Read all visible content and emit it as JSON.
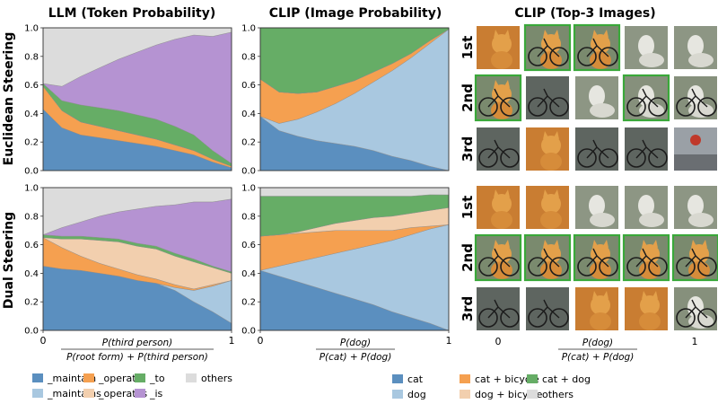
{
  "headers": {
    "llm": "LLM (Token Probability)",
    "clip_prob": "CLIP (Image Probability)",
    "clip_images": "CLIP (Top-3 Images)"
  },
  "row_labels": {
    "euclidean": "Euclidean Steering",
    "dual": "Dual Steering"
  },
  "rank_labels": [
    "1st",
    "2nd",
    "3rd"
  ],
  "xlabels": {
    "llm_num": "P(third person)",
    "llm_den": "P(root form) + P(third person)",
    "clip_num": "P(dog)",
    "clip_den": "P(cat) + P(dog)"
  },
  "chart_data": [
    {
      "id": "llm-euclidean",
      "type": "area",
      "stacked": true,
      "x": [
        0,
        0.1,
        0.2,
        0.3,
        0.4,
        0.5,
        0.6,
        0.7,
        0.8,
        0.9,
        1.0
      ],
      "xlim": [
        0,
        1
      ],
      "ylim": [
        0,
        1
      ],
      "yticks": [
        0.0,
        0.2,
        0.4,
        0.6,
        0.8,
        1.0
      ],
      "series": [
        {
          "name": "_maintain",
          "color": "#5b8fbf",
          "values": [
            0.43,
            0.3,
            0.25,
            0.23,
            0.21,
            0.19,
            0.17,
            0.14,
            0.11,
            0.06,
            0.02
          ]
        },
        {
          "name": "_maintains",
          "color": "#a9c8e0",
          "values": [
            0.0,
            0.0,
            0.0,
            0.0,
            0.0,
            0.0,
            0.0,
            0.0,
            0.0,
            0.0,
            0.0
          ]
        },
        {
          "name": "_operate",
          "color": "#f5a050",
          "values": [
            0.16,
            0.12,
            0.09,
            0.08,
            0.07,
            0.06,
            0.05,
            0.04,
            0.03,
            0.02,
            0.01
          ]
        },
        {
          "name": "_operates",
          "color": "#f2cfae",
          "values": [
            0.0,
            0.0,
            0.0,
            0.0,
            0.0,
            0.0,
            0.0,
            0.0,
            0.0,
            0.0,
            0.0
          ]
        },
        {
          "name": "_to",
          "color": "#66ad66",
          "values": [
            0.02,
            0.07,
            0.12,
            0.13,
            0.14,
            0.14,
            0.14,
            0.13,
            0.11,
            0.06,
            0.02
          ]
        },
        {
          "name": "_is",
          "color": "#b593d2",
          "values": [
            0.0,
            0.1,
            0.2,
            0.28,
            0.36,
            0.44,
            0.52,
            0.61,
            0.7,
            0.8,
            0.92
          ]
        },
        {
          "name": "others",
          "color": "#dcdcdc",
          "values": [
            0.39,
            0.41,
            0.34,
            0.28,
            0.22,
            0.17,
            0.12,
            0.08,
            0.05,
            0.06,
            0.03
          ]
        }
      ]
    },
    {
      "id": "clip-euclidean",
      "type": "area",
      "stacked": true,
      "x": [
        0,
        0.1,
        0.2,
        0.3,
        0.4,
        0.5,
        0.6,
        0.7,
        0.8,
        0.9,
        1.0
      ],
      "xlim": [
        0,
        1
      ],
      "ylim": [
        0,
        1
      ],
      "yticks": [
        0.0,
        0.2,
        0.4,
        0.6,
        0.8,
        1.0
      ],
      "series": [
        {
          "name": "cat",
          "color": "#5b8fbf",
          "values": [
            0.38,
            0.28,
            0.24,
            0.21,
            0.19,
            0.17,
            0.14,
            0.1,
            0.07,
            0.03,
            0.0
          ]
        },
        {
          "name": "dog",
          "color": "#a9c8e0",
          "values": [
            0.0,
            0.05,
            0.12,
            0.2,
            0.28,
            0.37,
            0.48,
            0.6,
            0.72,
            0.86,
            0.99
          ]
        },
        {
          "name": "cat + bicycle",
          "color": "#f5a050",
          "values": [
            0.26,
            0.22,
            0.18,
            0.14,
            0.12,
            0.09,
            0.07,
            0.05,
            0.03,
            0.02,
            0.0
          ]
        },
        {
          "name": "dog + bicycle",
          "color": "#f2cfae",
          "values": [
            0.0,
            0.0,
            0.0,
            0.0,
            0.0,
            0.0,
            0.0,
            0.0,
            0.0,
            0.0,
            0.0
          ]
        },
        {
          "name": "cat + dog",
          "color": "#66ad66",
          "values": [
            0.36,
            0.45,
            0.46,
            0.45,
            0.41,
            0.37,
            0.31,
            0.25,
            0.18,
            0.09,
            0.01
          ]
        },
        {
          "name": "others",
          "color": "#dcdcdc",
          "values": [
            0.0,
            0.0,
            0.0,
            0.0,
            0.0,
            0.0,
            0.0,
            0.0,
            0.0,
            0.0,
            0.0
          ]
        }
      ]
    },
    {
      "id": "llm-dual",
      "type": "area",
      "stacked": true,
      "x": [
        0,
        0.1,
        0.2,
        0.3,
        0.4,
        0.5,
        0.6,
        0.7,
        0.8,
        0.9,
        1.0
      ],
      "xlim": [
        0,
        1
      ],
      "ylim": [
        0,
        1
      ],
      "yticks": [
        0.0,
        0.2,
        0.4,
        0.6,
        0.8,
        1.0
      ],
      "series": [
        {
          "name": "_maintain",
          "color": "#5b8fbf",
          "values": [
            0.45,
            0.43,
            0.42,
            0.4,
            0.38,
            0.35,
            0.33,
            0.28,
            0.2,
            0.13,
            0.05
          ]
        },
        {
          "name": "_maintains",
          "color": "#a9c8e0",
          "values": [
            0.0,
            0.0,
            0.0,
            0.0,
            0.0,
            0.0,
            0.0,
            0.02,
            0.08,
            0.18,
            0.3
          ]
        },
        {
          "name": "_operate",
          "color": "#f5a050",
          "values": [
            0.2,
            0.15,
            0.1,
            0.07,
            0.05,
            0.04,
            0.03,
            0.02,
            0.01,
            0.01,
            0.0
          ]
        },
        {
          "name": "_operates",
          "color": "#f2cfae",
          "values": [
            0.0,
            0.06,
            0.12,
            0.16,
            0.19,
            0.2,
            0.21,
            0.2,
            0.19,
            0.12,
            0.05
          ]
        },
        {
          "name": "_to",
          "color": "#66ad66",
          "values": [
            0.02,
            0.02,
            0.02,
            0.02,
            0.02,
            0.02,
            0.02,
            0.02,
            0.02,
            0.01,
            0.01
          ]
        },
        {
          "name": "_is",
          "color": "#b593d2",
          "values": [
            0.0,
            0.06,
            0.1,
            0.15,
            0.19,
            0.24,
            0.28,
            0.34,
            0.4,
            0.45,
            0.51
          ]
        },
        {
          "name": "others",
          "color": "#dcdcdc",
          "values": [
            0.33,
            0.28,
            0.24,
            0.2,
            0.17,
            0.15,
            0.13,
            0.12,
            0.1,
            0.1,
            0.08
          ]
        }
      ]
    },
    {
      "id": "clip-dual",
      "type": "area",
      "stacked": true,
      "x": [
        0,
        0.1,
        0.2,
        0.3,
        0.4,
        0.5,
        0.6,
        0.7,
        0.8,
        0.9,
        1.0
      ],
      "xlim": [
        0,
        1
      ],
      "ylim": [
        0,
        1
      ],
      "yticks": [
        0.0,
        0.2,
        0.4,
        0.6,
        0.8,
        1.0
      ],
      "series": [
        {
          "name": "cat",
          "color": "#5b8fbf",
          "values": [
            0.42,
            0.38,
            0.34,
            0.3,
            0.26,
            0.22,
            0.18,
            0.13,
            0.09,
            0.05,
            0.0
          ]
        },
        {
          "name": "dog",
          "color": "#a9c8e0",
          "values": [
            0.0,
            0.07,
            0.14,
            0.21,
            0.28,
            0.35,
            0.42,
            0.5,
            0.58,
            0.66,
            0.74
          ]
        },
        {
          "name": "cat + bicycle",
          "color": "#f5a050",
          "values": [
            0.24,
            0.22,
            0.2,
            0.18,
            0.16,
            0.13,
            0.1,
            0.07,
            0.05,
            0.02,
            0.0
          ]
        },
        {
          "name": "dog + bicycle",
          "color": "#f2cfae",
          "values": [
            0.0,
            0.0,
            0.01,
            0.03,
            0.05,
            0.07,
            0.09,
            0.1,
            0.1,
            0.11,
            0.12
          ]
        },
        {
          "name": "cat + dog",
          "color": "#66ad66",
          "values": [
            0.28,
            0.27,
            0.25,
            0.22,
            0.19,
            0.17,
            0.15,
            0.14,
            0.12,
            0.11,
            0.09
          ]
        },
        {
          "name": "others",
          "color": "#dcdcdc",
          "values": [
            0.06,
            0.06,
            0.06,
            0.06,
            0.06,
            0.06,
            0.06,
            0.06,
            0.06,
            0.05,
            0.05
          ]
        }
      ]
    }
  ],
  "image_grid": {
    "x_ticks": [
      "0",
      "1"
    ],
    "rows": [
      {
        "steering": "Euclidean Steering",
        "rank": "1st",
        "images": [
          "cat",
          "cat+bicycle",
          "cat+bicycle",
          "dog",
          "dog"
        ],
        "highlight": [
          false,
          true,
          true,
          false,
          false
        ]
      },
      {
        "steering": "Euclidean Steering",
        "rank": "2nd",
        "images": [
          "cat+bicycle",
          "bicycle",
          "dog",
          "dog+bicycle",
          "dog+bicycle"
        ],
        "highlight": [
          true,
          false,
          false,
          true,
          false
        ]
      },
      {
        "steering": "Euclidean Steering",
        "rank": "3rd",
        "images": [
          "bicycle",
          "cat",
          "bicycle",
          "bicycle",
          "street"
        ],
        "highlight": [
          false,
          false,
          false,
          false,
          false
        ]
      },
      {
        "steering": "Dual Steering",
        "rank": "1st",
        "images": [
          "cat",
          "cat",
          "dog",
          "dog",
          "dog"
        ],
        "highlight": [
          false,
          false,
          false,
          false,
          false
        ]
      },
      {
        "steering": "Dual Steering",
        "rank": "2nd",
        "images": [
          "cat+bicycle",
          "cat+bicycle",
          "cat+bicycle",
          "cat+bicycle",
          "cat+bicycle"
        ],
        "highlight": [
          true,
          true,
          true,
          true,
          true
        ]
      },
      {
        "steering": "Dual Steering",
        "rank": "3rd",
        "images": [
          "bicycle",
          "bicycle",
          "cat",
          "cat",
          "dog+bicycle"
        ],
        "highlight": [
          false,
          false,
          false,
          false,
          false
        ]
      }
    ]
  },
  "legends": {
    "llm": [
      {
        "label": "_maintain",
        "color": "#5b8fbf"
      },
      {
        "label": "_operate",
        "color": "#f5a050"
      },
      {
        "label": "_to",
        "color": "#66ad66"
      },
      {
        "label": "others",
        "color": "#dcdcdc"
      },
      {
        "label": "_maintains",
        "color": "#a9c8e0"
      },
      {
        "label": "_operates",
        "color": "#f2cfae"
      },
      {
        "label": "_is",
        "color": "#b593d2"
      }
    ],
    "clip": [
      {
        "label": "cat",
        "color": "#5b8fbf"
      },
      {
        "label": "cat + bicycle",
        "color": "#f5a050"
      },
      {
        "label": "cat + dog",
        "color": "#66ad66"
      },
      {
        "label": "dog",
        "color": "#a9c8e0"
      },
      {
        "label": "dog + bicycle",
        "color": "#f2cfae"
      },
      {
        "label": "others",
        "color": "#dcdcdc"
      }
    ]
  },
  "colors": {
    "highlight": "#3aa83a",
    "axis": "#333333"
  }
}
